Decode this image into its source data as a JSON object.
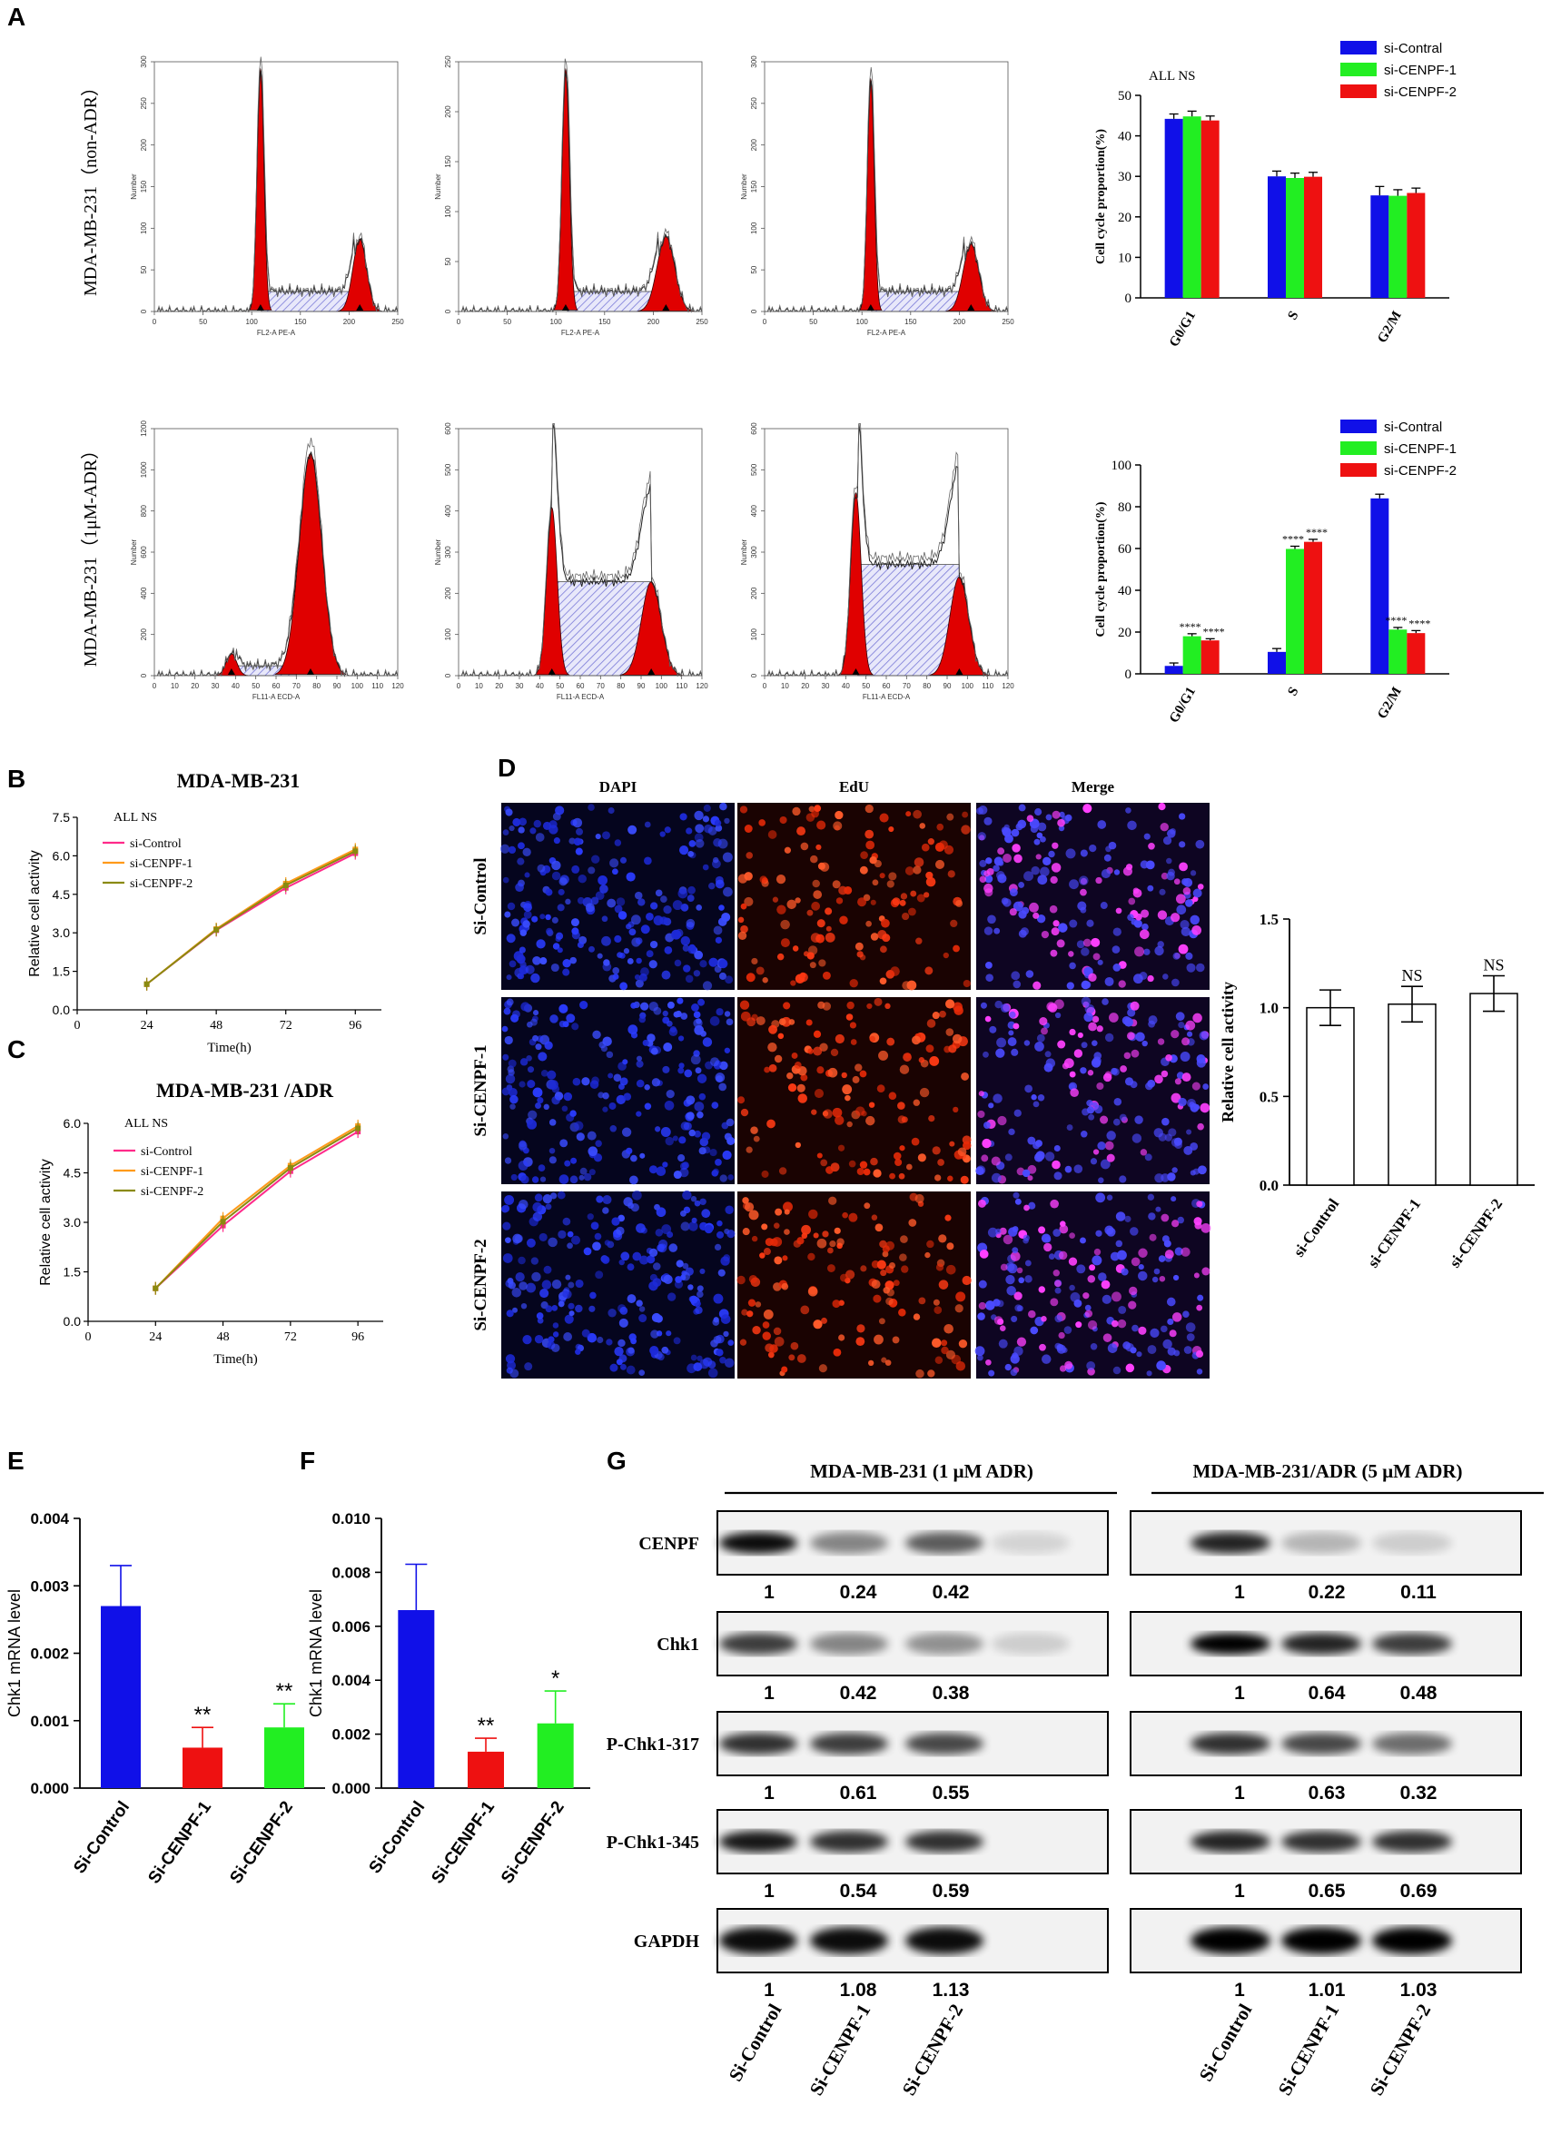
{
  "figure": {
    "panel_labels": [
      "A",
      "B",
      "C",
      "D",
      "E",
      "F",
      "G"
    ],
    "colors": {
      "blue": "#1010e8",
      "green": "#22ee22",
      "red": "#ee1111",
      "hist_red": "#e00000",
      "hatch": "#7a7ad8",
      "line_pink": "#ff2a8a",
      "line_orange": "#ff9a1a",
      "line_olive": "#8a8a10"
    }
  },
  "panel_a": {
    "row_labels": [
      "MDA-MB-231（non-ADR）",
      "MDA-MB-231（1μM-ADR）"
    ],
    "histograms": {
      "row1": {
        "xlabel": "FL2-A PE-A",
        "ylabel": "Number",
        "x_ticks": [
          "0",
          "50",
          "100",
          "150",
          "200",
          "250"
        ],
        "y_ticks": [
          [
            "0",
            "50",
            "100",
            "150",
            "200",
            "250",
            "300"
          ],
          [
            "0",
            "50",
            "100",
            "150",
            "200",
            "250"
          ],
          [
            "0",
            "50",
            "100",
            "150",
            "200",
            "250",
            "300"
          ]
        ]
      },
      "row2": {
        "xlabel": "FL11-A ECD-A",
        "ylabel": "Number",
        "x_ticks": [
          "0",
          "10",
          "20",
          "30",
          "40",
          "50",
          "60",
          "70",
          "80",
          "90",
          "100",
          "110",
          "120"
        ],
        "y_ticks": [
          [
            "0",
            "200",
            "400",
            "600",
            "800",
            "1000",
            "1200"
          ],
          [
            "0",
            "100",
            "200",
            "300",
            "400",
            "500",
            "600"
          ],
          [
            "0",
            "100",
            "200",
            "300",
            "400",
            "500",
            "600"
          ]
        ]
      }
    }
  },
  "chart_data": [
    {
      "id": "A-top-bar",
      "type": "bar",
      "title": "",
      "annotation": "ALL NS",
      "ylabel": "Cell cycle proportion(%)",
      "categories": [
        "G0/G1",
        "S",
        "G2/M"
      ],
      "series": [
        {
          "name": "si-Contral",
          "values": [
            44.2,
            30.0,
            25.3
          ],
          "errors": [
            1.2,
            1.3,
            2.2
          ]
        },
        {
          "name": "si-CENPF-1",
          "values": [
            44.8,
            29.6,
            25.2
          ],
          "errors": [
            1.3,
            1.2,
            1.5
          ]
        },
        {
          "name": "si-CENPF-2",
          "values": [
            43.8,
            29.9,
            25.9
          ],
          "errors": [
            1.1,
            1.1,
            1.2
          ]
        }
      ],
      "y_ticks": [
        "0",
        "10",
        "20",
        "30",
        "40",
        "50"
      ],
      "ylim": [
        0,
        50
      ]
    },
    {
      "id": "A-bottom-bar",
      "type": "bar",
      "title": "",
      "ylabel": "Cell cycle proportion(%)",
      "categories": [
        "G0/G1",
        "S",
        "G2/M"
      ],
      "series": [
        {
          "name": "si-Contral",
          "values": [
            3.8,
            10.5,
            84.0
          ],
          "errors": [
            1.4,
            1.6,
            2.0
          ],
          "sig": [
            "",
            "",
            ""
          ]
        },
        {
          "name": "si-CENPF-1",
          "values": [
            18.0,
            59.8,
            21.2
          ],
          "errors": [
            1.2,
            1.3,
            1.0
          ],
          "sig": [
            "****",
            "****",
            "****"
          ]
        },
        {
          "name": "si-CENPF-2",
          "values": [
            16.0,
            63.2,
            19.5
          ],
          "errors": [
            0.8,
            1.2,
            1.2
          ],
          "sig": [
            "****",
            "****",
            "****"
          ]
        }
      ],
      "y_ticks": [
        "0",
        "20",
        "40",
        "60",
        "80",
        "100"
      ],
      "ylim": [
        0,
        100
      ]
    },
    {
      "id": "B-line",
      "type": "line",
      "title": "MDA-MB-231",
      "annotation": "ALL NS",
      "xlabel": "Time(h)",
      "ylabel": "Relative cell activity",
      "x": [
        24,
        48,
        72,
        96
      ],
      "series": [
        {
          "name": "si-Control",
          "values": [
            1.0,
            3.1,
            4.75,
            6.1
          ]
        },
        {
          "name": "si-CENPF-1",
          "values": [
            1.0,
            3.15,
            4.92,
            6.25
          ]
        },
        {
          "name": "si-CENPF-2",
          "values": [
            1.0,
            3.12,
            4.85,
            6.18
          ]
        }
      ],
      "x_ticks": [
        "0",
        "24",
        "48",
        "72",
        "96"
      ],
      "y_ticks": [
        "0.0",
        "1.5",
        "3.0",
        "4.5",
        "6.0",
        "7.5"
      ],
      "xlim": [
        0,
        105
      ],
      "ylim": [
        0,
        7.5
      ]
    },
    {
      "id": "C-line",
      "type": "line",
      "title": "MDA-MB-231 /ADR",
      "annotation": "ALL NS",
      "xlabel": "Time(h)",
      "ylabel": "Relative cell activity",
      "x": [
        24,
        48,
        72,
        96
      ],
      "series": [
        {
          "name": "si-Control",
          "values": [
            1.0,
            2.9,
            4.55,
            5.75
          ]
        },
        {
          "name": "si-CENPF-1",
          "values": [
            1.0,
            3.12,
            4.72,
            5.92
          ]
        },
        {
          "name": "si-CENPF-2",
          "values": [
            1.0,
            3.02,
            4.65,
            5.85
          ]
        }
      ],
      "x_ticks": [
        "0",
        "24",
        "48",
        "72",
        "96"
      ],
      "y_ticks": [
        "0.0",
        "1.5",
        "3.0",
        "4.5",
        "6.0"
      ],
      "xlim": [
        0,
        105
      ],
      "ylim": [
        0,
        6.0
      ]
    },
    {
      "id": "D-bar",
      "type": "bar",
      "ylabel": "Relative cell activity",
      "categories": [
        "si-Control",
        "si-CENPF-1",
        "si-CENPF-2"
      ],
      "values": [
        1.0,
        1.02,
        1.08
      ],
      "errors": [
        0.1,
        0.1,
        0.1
      ],
      "sig": [
        "",
        "NS",
        "NS"
      ],
      "y_ticks": [
        "0.0",
        "0.5",
        "1.0",
        "1.5"
      ],
      "ylim": [
        0,
        1.5
      ]
    },
    {
      "id": "E-bar",
      "type": "bar",
      "ylabel": "Chk1 mRNA level",
      "categories": [
        "Si-Control",
        "Si-CENPF-1",
        "Si-CENPF-2"
      ],
      "values": [
        0.0027,
        0.0006,
        0.0009
      ],
      "errors": [
        0.0006,
        0.0003,
        0.00035
      ],
      "sig": [
        "",
        "**",
        "**"
      ],
      "y_ticks": [
        "0.000",
        "0.001",
        "0.002",
        "0.003",
        "0.004"
      ],
      "ylim": [
        0,
        0.004
      ]
    },
    {
      "id": "F-bar",
      "type": "bar",
      "ylabel": "Chk1 mRNA level",
      "categories": [
        "Si-Control",
        "Si-CENPF-1",
        "Si-CENPF-2"
      ],
      "values": [
        0.0066,
        0.00135,
        0.0024
      ],
      "errors": [
        0.0017,
        0.0005,
        0.0012
      ],
      "sig": [
        "",
        "**",
        "*"
      ],
      "y_ticks": [
        "0.000",
        "0.002",
        "0.004",
        "0.006",
        "0.008",
        "0.010"
      ],
      "ylim": [
        0,
        0.01
      ]
    }
  ],
  "panel_d": {
    "col_headers": [
      "DAPI",
      "EdU",
      "Merge"
    ],
    "row_labels": [
      "Si-Control",
      "Si-CENPF-1",
      "Si-CENPF-2"
    ]
  },
  "panel_g": {
    "group_titles": [
      "MDA-MB-231 (1 μM ADR)",
      "MDA-MB-231/ADR (5 μM ADR)"
    ],
    "proteins": [
      "CENPF",
      "Chk1",
      "P-Chk1-317",
      "P-Chk1-345",
      "GAPDH"
    ],
    "values_left": [
      [
        "1",
        "0.24",
        "0.42"
      ],
      [
        "1",
        "0.42",
        "0.38"
      ],
      [
        "1",
        "0.61",
        "0.55"
      ],
      [
        "1",
        "0.54",
        "0.59"
      ],
      [
        "1",
        "1.08",
        "1.13"
      ]
    ],
    "values_right": [
      [
        "1",
        "0.22",
        "0.11"
      ],
      [
        "1",
        "0.64",
        "0.48"
      ],
      [
        "1",
        "0.63",
        "0.32"
      ],
      [
        "1",
        "0.65",
        "0.69"
      ],
      [
        "1",
        "1.01",
        "1.03"
      ]
    ],
    "lane_labels": [
      "Si-Control",
      "Si-CENPF-1",
      "Si-CENPF-2"
    ]
  }
}
